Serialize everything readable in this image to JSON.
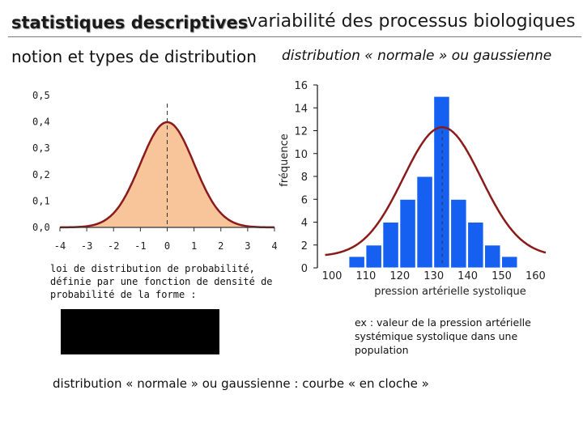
{
  "header": {
    "title": "statistiques descriptives",
    "subtitle": "variabilité des processus biologiques"
  },
  "section_left_title": "notion et types de distribution",
  "section_right_title": "distribution « normale » ou gaussienne",
  "description": "loi de distribution de probabilité, définie par une fonction de densité de probabilité de la forme :",
  "example_note": "ex : valeur de la pression artérielle systémique systolique dans une population",
  "conclusion": "distribution « normale » ou gaussienne : courbe « en cloche »",
  "colors": {
    "normal_fill": "#f8c59a",
    "curve": "#8b1a1a",
    "bars": "#1560f0",
    "bar_edge": "#ffffff"
  },
  "chart_data": [
    {
      "type": "area",
      "title": "",
      "xlabel": "",
      "ylabel": "",
      "xlim": [
        -4,
        4
      ],
      "ylim": [
        0,
        0.5
      ],
      "x_ticks": [
        "-4",
        "-3",
        "-2",
        "-1",
        "0",
        "1",
        "2",
        "3",
        "4"
      ],
      "y_ticks": [
        "0,0",
        "0,1",
        "0,2",
        "0,3",
        "0,4",
        "0,5"
      ],
      "series": [
        {
          "function": "standard normal density",
          "mean": 0,
          "sd": 1
        }
      ],
      "reference_line_x": 0
    },
    {
      "type": "bar",
      "title": "",
      "xlabel": "pression artérielle systolique",
      "ylabel": "fréquence",
      "ylim": [
        0,
        16
      ],
      "x_ticks": [
        "100",
        "110",
        "120",
        "130",
        "140",
        "150",
        "160"
      ],
      "y_ticks": [
        "0",
        "2",
        "4",
        "6",
        "8",
        "10",
        "12",
        "14",
        "16"
      ],
      "bins": [
        {
          "x": 107.5,
          "value": 1
        },
        {
          "x": 112.5,
          "value": 2
        },
        {
          "x": 117.5,
          "value": 4
        },
        {
          "x": 122.5,
          "value": 6
        },
        {
          "x": 127.5,
          "value": 8
        },
        {
          "x": 132.5,
          "value": 15
        },
        {
          "x": 137.5,
          "value": 6
        },
        {
          "x": 142.5,
          "value": 4
        },
        {
          "x": 147.5,
          "value": 2
        },
        {
          "x": 152.5,
          "value": 1
        }
      ],
      "fit_curve": {
        "type": "normal",
        "peak_x": 132.5,
        "peak_y": 12.3,
        "baseline": 1
      },
      "reference_line_x": 132.5
    }
  ]
}
